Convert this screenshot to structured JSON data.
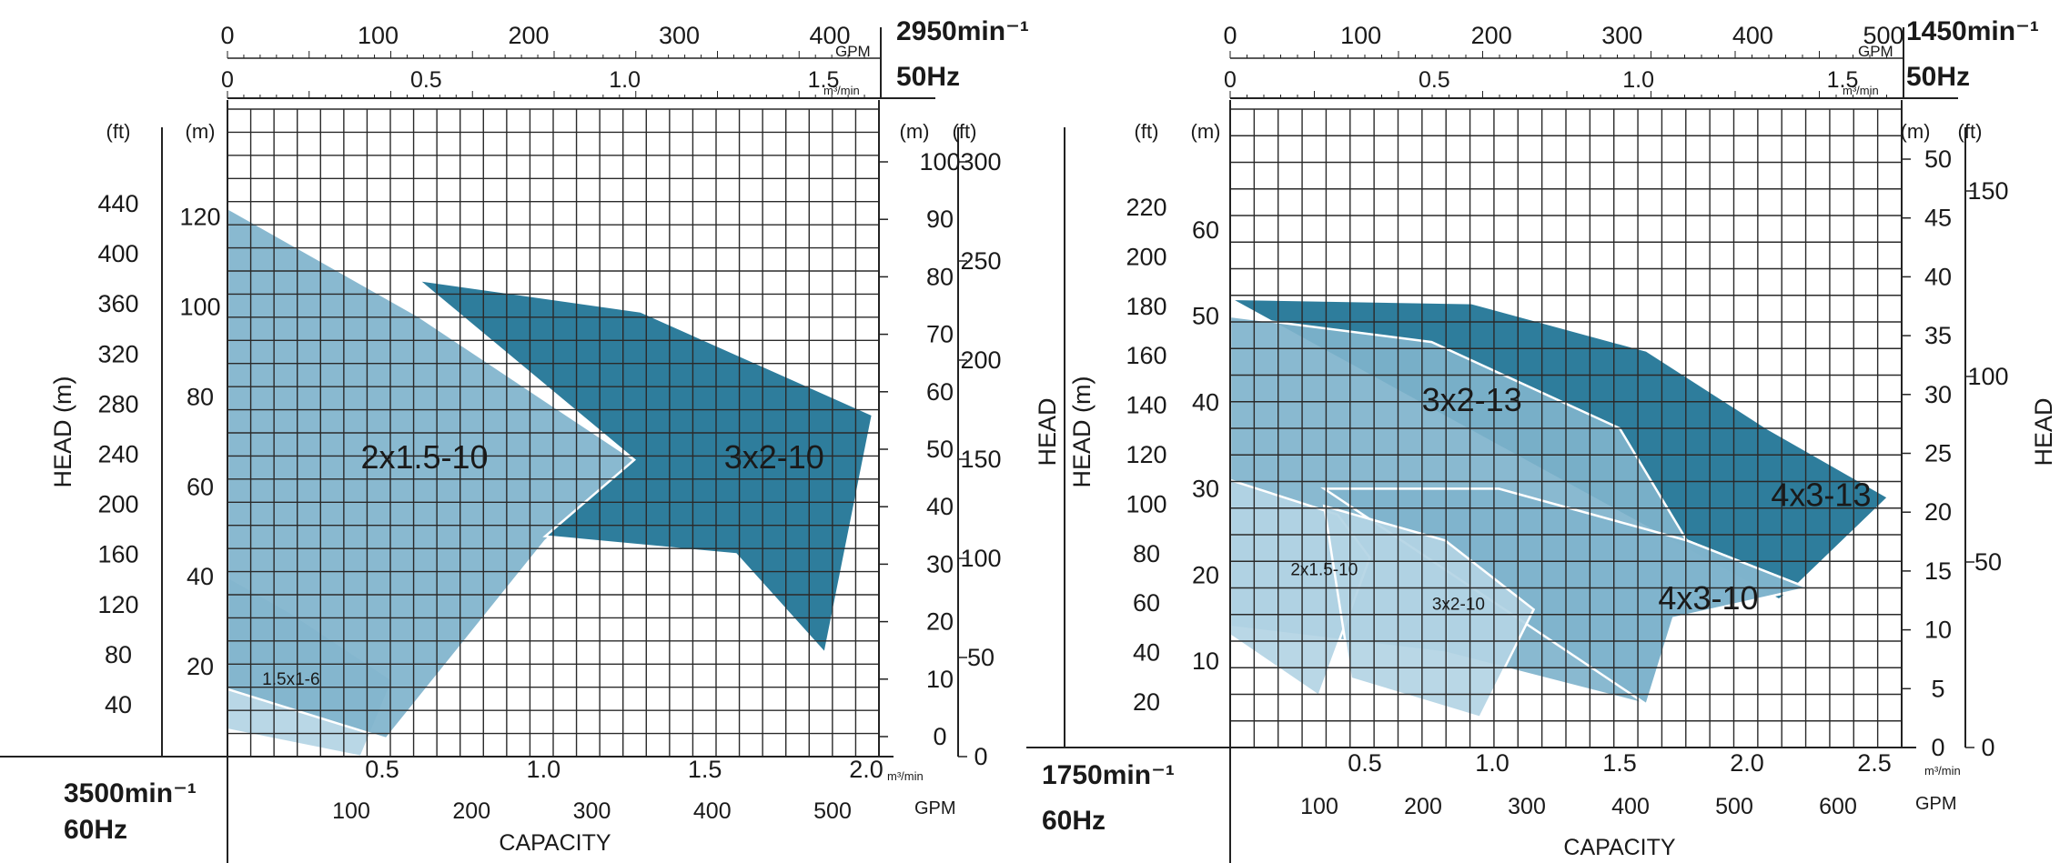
{
  "colors": {
    "dark": "#2e7d9c",
    "mid": "#7fb3cc",
    "light": "#b3d4e4",
    "grid": "#2a2a2a",
    "region_outline": "#ffffff"
  },
  "chart_data": [
    {
      "type": "area",
      "left_speed": "3500min⁻¹",
      "left_freq": "60Hz",
      "right_speed": "2950min⁻¹",
      "right_freq": "50Hz",
      "top_gpm_unit": "GPM",
      "top_m3_unit": "m³/min",
      "bottom_gpm_unit": "GPM",
      "bottom_m3_unit": "m³/min",
      "xlabel": "CAPACITY",
      "ylabel_left": "HEAD (m)",
      "left_unit_ft": "(ft)",
      "left_unit_m": "(m)",
      "right_unit_m": "(m)",
      "right_unit_ft": "(ft)",
      "x_unit": "m³/min at 60Hz",
      "x_range": [
        0,
        2.05
      ],
      "y_unit": "m at 60Hz",
      "y_range": [
        0,
        144
      ],
      "bottom_m3_ticks": [
        {
          "v": 0.5,
          "label": "0.5"
        },
        {
          "v": 1.0,
          "label": "1.0"
        },
        {
          "v": 1.5,
          "label": "1.5"
        },
        {
          "v": 2.0,
          "label": "2.0"
        }
      ],
      "bottom_gpm_ticks": [
        {
          "v": 100,
          "label": "100"
        },
        {
          "v": 200,
          "label": "200"
        },
        {
          "v": 300,
          "label": "300"
        },
        {
          "v": 400,
          "label": "400"
        },
        {
          "v": 500,
          "label": "500"
        }
      ],
      "top_gpm_ticks": [
        {
          "v": 0,
          "label": "0"
        },
        {
          "v": 100,
          "label": "100"
        },
        {
          "v": 200,
          "label": "200"
        },
        {
          "v": 300,
          "label": "300"
        },
        {
          "v": 400,
          "label": "400"
        }
      ],
      "top_m3_ticks": [
        {
          "v": 0,
          "label": "0"
        },
        {
          "v": 0.5,
          "label": "0.5"
        },
        {
          "v": 1.0,
          "label": "1.0"
        },
        {
          "v": 1.5,
          "label": "1.5"
        }
      ],
      "left_m_ticks": [
        {
          "v": 20,
          "label": "20"
        },
        {
          "v": 40,
          "label": "40"
        },
        {
          "v": 60,
          "label": "60"
        },
        {
          "v": 80,
          "label": "80"
        },
        {
          "v": 100,
          "label": "100"
        },
        {
          "v": 120,
          "label": "120"
        }
      ],
      "left_ft_ticks": [
        {
          "v": 40,
          "label": "40"
        },
        {
          "v": 80,
          "label": "80"
        },
        {
          "v": 120,
          "label": "120"
        },
        {
          "v": 160,
          "label": "160"
        },
        {
          "v": 200,
          "label": "200"
        },
        {
          "v": 240,
          "label": "240"
        },
        {
          "v": 280,
          "label": "280"
        },
        {
          "v": 320,
          "label": "320"
        },
        {
          "v": 360,
          "label": "360"
        },
        {
          "v": 400,
          "label": "400"
        },
        {
          "v": 440,
          "label": "440"
        }
      ],
      "right_m_ticks": [
        {
          "v": 0,
          "label": "0"
        },
        {
          "v": 10,
          "label": "10"
        },
        {
          "v": 20,
          "label": "20"
        },
        {
          "v": 30,
          "label": "30"
        },
        {
          "v": 40,
          "label": "40"
        },
        {
          "v": 50,
          "label": "50"
        },
        {
          "v": 60,
          "label": "60"
        },
        {
          "v": 70,
          "label": "70"
        },
        {
          "v": 80,
          "label": "80"
        },
        {
          "v": 90,
          "label": "90"
        },
        {
          "v": 100,
          "label": "100"
        }
      ],
      "right_ft_ticks": [
        {
          "v": 0,
          "label": "0"
        },
        {
          "v": 50,
          "label": "50"
        },
        {
          "v": 100,
          "label": "100"
        },
        {
          "v": 150,
          "label": "150"
        },
        {
          "v": 200,
          "label": "200"
        },
        {
          "v": 250,
          "label": "250"
        },
        {
          "v": 300,
          "label": "300"
        }
      ],
      "regions": [
        {
          "name": "1.5x1-6",
          "shade": "light",
          "label_at": [
            0.2,
            17
          ],
          "label_size": 19,
          "points": [
            [
              0,
              40
            ],
            [
              0.2,
              32
            ],
            [
              0.52,
              17
            ],
            [
              0.42,
              0
            ],
            [
              0,
              6
            ]
          ]
        },
        {
          "name": "2x1.5-10",
          "shade": "mid",
          "label_at": [
            0.62,
            66
          ],
          "label_size": 36,
          "points": [
            [
              0,
              122
            ],
            [
              0.6,
              98
            ],
            [
              1.28,
              66
            ],
            [
              1.0,
              48
            ],
            [
              0.5,
              4
            ],
            [
              0,
              15
            ]
          ]
        },
        {
          "name": "3x2-10",
          "shade": "dark",
          "label_at": [
            1.72,
            66
          ],
          "label_size": 36,
          "points": [
            [
              0.6,
              106
            ],
            [
              1.3,
              99
            ],
            [
              2.03,
              76
            ],
            [
              1.88,
              23
            ],
            [
              1.6,
              45
            ],
            [
              1.0,
              49
            ],
            [
              1.28,
              66
            ]
          ]
        }
      ]
    },
    {
      "type": "area",
      "left_speed": "1750min⁻¹",
      "left_freq": "60Hz",
      "right_speed": "1450min⁻¹",
      "right_freq": "50Hz",
      "top_gpm_unit": "GPM",
      "top_m3_unit": "m³/min",
      "bottom_gpm_unit": "GPM",
      "bottom_m3_unit": "m³/min",
      "xlabel": "CAPACITY",
      "ylabel_left": "HEAD (m)",
      "ylabel_left2": "HEAD",
      "ylabel_right": "HEAD",
      "left_unit_ft": "(ft)",
      "left_unit_m": "(m)",
      "right_unit_m": "(m)",
      "right_unit_ft": "(ft)",
      "x_unit": "m³/min at 60Hz",
      "x_range": [
        0,
        2.5
      ],
      "y_unit": "m at 60Hz",
      "y_range": [
        0,
        74
      ],
      "bottom_m3_ticks": [
        {
          "v": 0.5,
          "label": "0.5"
        },
        {
          "v": 1.0,
          "label": "1.0"
        },
        {
          "v": 1.5,
          "label": "1.5"
        },
        {
          "v": 2.0,
          "label": "2.0"
        },
        {
          "v": 2.5,
          "label": "2.5"
        }
      ],
      "bottom_gpm_ticks": [
        {
          "v": 100,
          "label": "100"
        },
        {
          "v": 200,
          "label": "200"
        },
        {
          "v": 300,
          "label": "300"
        },
        {
          "v": 400,
          "label": "400"
        },
        {
          "v": 500,
          "label": "500"
        },
        {
          "v": 600,
          "label": "600"
        }
      ],
      "top_gpm_ticks": [
        {
          "v": 0,
          "label": "0"
        },
        {
          "v": 100,
          "label": "100"
        },
        {
          "v": 200,
          "label": "200"
        },
        {
          "v": 300,
          "label": "300"
        },
        {
          "v": 400,
          "label": "400"
        },
        {
          "v": 500,
          "label": "500"
        }
      ],
      "top_m3_ticks": [
        {
          "v": 0,
          "label": "0"
        },
        {
          "v": 0.5,
          "label": "0.5"
        },
        {
          "v": 1.0,
          "label": "1.0"
        },
        {
          "v": 1.5,
          "label": "1.5"
        }
      ],
      "left_m_ticks": [
        {
          "v": 10,
          "label": "10"
        },
        {
          "v": 20,
          "label": "20"
        },
        {
          "v": 30,
          "label": "30"
        },
        {
          "v": 40,
          "label": "40"
        },
        {
          "v": 50,
          "label": "50"
        },
        {
          "v": 60,
          "label": "60"
        }
      ],
      "left_ft_ticks": [
        {
          "v": 20,
          "label": "20"
        },
        {
          "v": 40,
          "label": "40"
        },
        {
          "v": 60,
          "label": "60"
        },
        {
          "v": 80,
          "label": "80"
        },
        {
          "v": 100,
          "label": "100"
        },
        {
          "v": 120,
          "label": "120"
        },
        {
          "v": 140,
          "label": "140"
        },
        {
          "v": 160,
          "label": "160"
        },
        {
          "v": 180,
          "label": "180"
        },
        {
          "v": 200,
          "label": "200"
        },
        {
          "v": 220,
          "label": "220"
        }
      ],
      "right_m_ticks": [
        {
          "v": 0,
          "label": "0"
        },
        {
          "v": 5,
          "label": "5"
        },
        {
          "v": 10,
          "label": "10"
        },
        {
          "v": 15,
          "label": "15"
        },
        {
          "v": 20,
          "label": "20"
        },
        {
          "v": 25,
          "label": "25"
        },
        {
          "v": 30,
          "label": "30"
        },
        {
          "v": 35,
          "label": "35"
        },
        {
          "v": 40,
          "label": "40"
        },
        {
          "v": 45,
          "label": "45"
        },
        {
          "v": 50,
          "label": "50"
        }
      ],
      "right_ft_ticks": [
        {
          "v": 0,
          "label": "0"
        },
        {
          "v": 50,
          "label": "50"
        },
        {
          "v": 100,
          "label": "100"
        },
        {
          "v": 150,
          "label": "150"
        }
      ],
      "regions": [
        {
          "name": "4x3-13",
          "shade": "dark",
          "label_at": [
            2.2,
            29
          ],
          "label_size": 36,
          "points": [
            [
              0,
              52
            ],
            [
              0.9,
              51.5
            ],
            [
              1.55,
              46
            ],
            [
              2.0,
              37
            ],
            [
              2.45,
              29
            ],
            [
              2.1,
              18.5
            ],
            [
              1.75,
              10
            ],
            [
              2.05,
              17
            ]
          ]
        },
        {
          "name": "3x2-13",
          "shade": "mid",
          "label_at": [
            0.9,
            40
          ],
          "label_size": 36,
          "points": [
            [
              0,
              50
            ],
            [
              0.75,
              47
            ],
            [
              1.45,
              37
            ],
            [
              1.7,
              24
            ],
            [
              2.15,
              18.5
            ],
            [
              1.65,
              15
            ],
            [
              1.55,
              5
            ],
            [
              0.8,
              11
            ],
            [
              0,
              14
            ]
          ]
        },
        {
          "name": "4x3-10",
          "shade": "mid",
          "label_at": [
            1.78,
            17
          ],
          "label_size": 36,
          "points": [
            [
              0.35,
              30
            ],
            [
              1.0,
              30
            ],
            [
              1.7,
              24
            ],
            [
              2.15,
              18.5
            ],
            [
              1.65,
              15
            ],
            [
              1.55,
              5
            ]
          ]
        },
        {
          "name": "2x1.5-10",
          "shade": "light",
          "label_at": [
            0.35,
            20.5
          ],
          "label_size": 19,
          "points": [
            [
              0,
              31
            ],
            [
              0.4,
              27
            ],
            [
              0.52,
              22
            ],
            [
              0.33,
              6
            ],
            [
              0,
              13
            ]
          ]
        },
        {
          "name": "3x2-10",
          "shade": "light",
          "label_at": [
            0.85,
            16.5
          ],
          "label_size": 19,
          "points": [
            [
              0.35,
              28
            ],
            [
              0.8,
              24
            ],
            [
              1.13,
              16
            ],
            [
              0.93,
              3.5
            ],
            [
              0.45,
              8
            ]
          ]
        }
      ]
    }
  ]
}
